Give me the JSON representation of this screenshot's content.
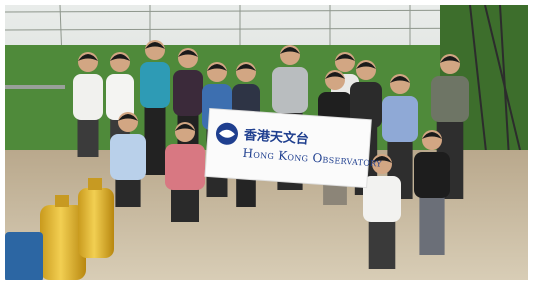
{
  "banner": {
    "chinese_name": "香港天文台",
    "english_name": "Hong Kong Observatory"
  }
}
